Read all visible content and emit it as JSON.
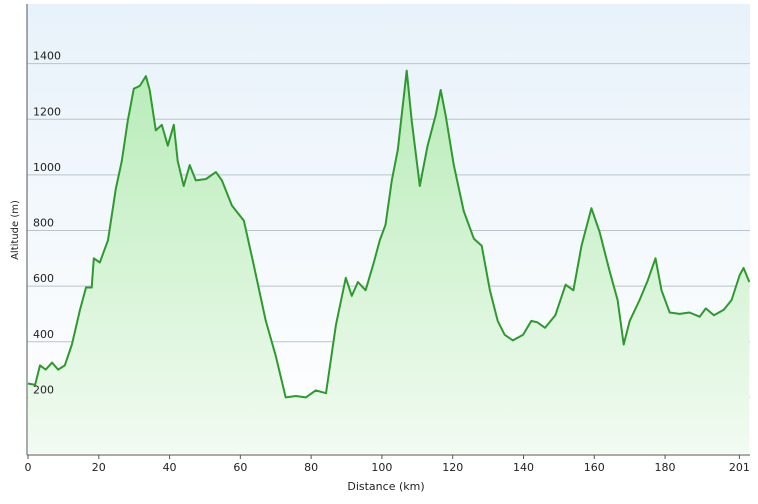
{
  "chart_data": {
    "type": "area",
    "x_label": "Distance  (km)",
    "y_label": "Altitude (m)",
    "color": "#2e9a2e",
    "fill": "#c6f0c6",
    "grid": true,
    "xlim": [
      0,
      204
    ],
    "ylim": [
      0,
      1600
    ],
    "xticks": [
      0,
      20,
      40,
      60,
      80,
      100,
      120,
      140,
      160,
      180,
      201
    ],
    "yticks": [
      200,
      400,
      600,
      800,
      1000,
      1200,
      1400
    ],
    "x": [
      0,
      2,
      3.4,
      5,
      6.8,
      8.5,
      10.4,
      12.4,
      14.7,
      16.4,
      18,
      18.6,
      20.3,
      22.6,
      24.8,
      26.5,
      28.2,
      29.9,
      31.6,
      33.3,
      34.4,
      36.1,
      37.8,
      39.5,
      41.2,
      42.3,
      44,
      45.7,
      47.4,
      50.3,
      53.1,
      54.8,
      57.6,
      61,
      63.8,
      67.2,
      70,
      72.8,
      75.7,
      78.5,
      81.3,
      84.2,
      87,
      89.8,
      91.5,
      93.2,
      95.4,
      97.7,
      99.4,
      101,
      102.8,
      104.5,
      106.2,
      107,
      108.4,
      110.7,
      112.9,
      115.2,
      116.6,
      118,
      120.3,
      123.1,
      126,
      128.2,
      130.5,
      132.7,
      134.7,
      137,
      139.9,
      142.2,
      143.9,
      146.1,
      149,
      151.9,
      154.1,
      156.4,
      159.2,
      161.5,
      164.3,
      166.6,
      168.3,
      170,
      172.8,
      175.1,
      177.3,
      179,
      181.3,
      184.1,
      186.9,
      189.8,
      191.5,
      193.8,
      196.6,
      198.8,
      201.1,
      202.2,
      203.8
    ],
    "values": [
      250,
      245,
      315,
      300,
      325,
      300,
      315,
      390,
      515,
      595,
      595,
      700,
      685,
      765,
      950,
      1050,
      1195,
      1310,
      1320,
      1355,
      1305,
      1160,
      1180,
      1105,
      1180,
      1050,
      960,
      1035,
      980,
      985,
      1010,
      980,
      890,
      835,
      675,
      475,
      350,
      200,
      205,
      200,
      225,
      215,
      460,
      630,
      565,
      615,
      585,
      685,
      765,
      820,
      980,
      1090,
      1285,
      1375,
      1195,
      960,
      1105,
      1215,
      1305,
      1215,
      1035,
      870,
      770,
      745,
      585,
      475,
      425,
      405,
      425,
      475,
      470,
      450,
      495,
      605,
      585,
      745,
      880,
      795,
      655,
      550,
      390,
      475,
      550,
      620,
      700,
      585,
      505,
      500,
      505,
      490,
      520,
      495,
      515,
      550,
      640,
      665,
      615
    ]
  }
}
